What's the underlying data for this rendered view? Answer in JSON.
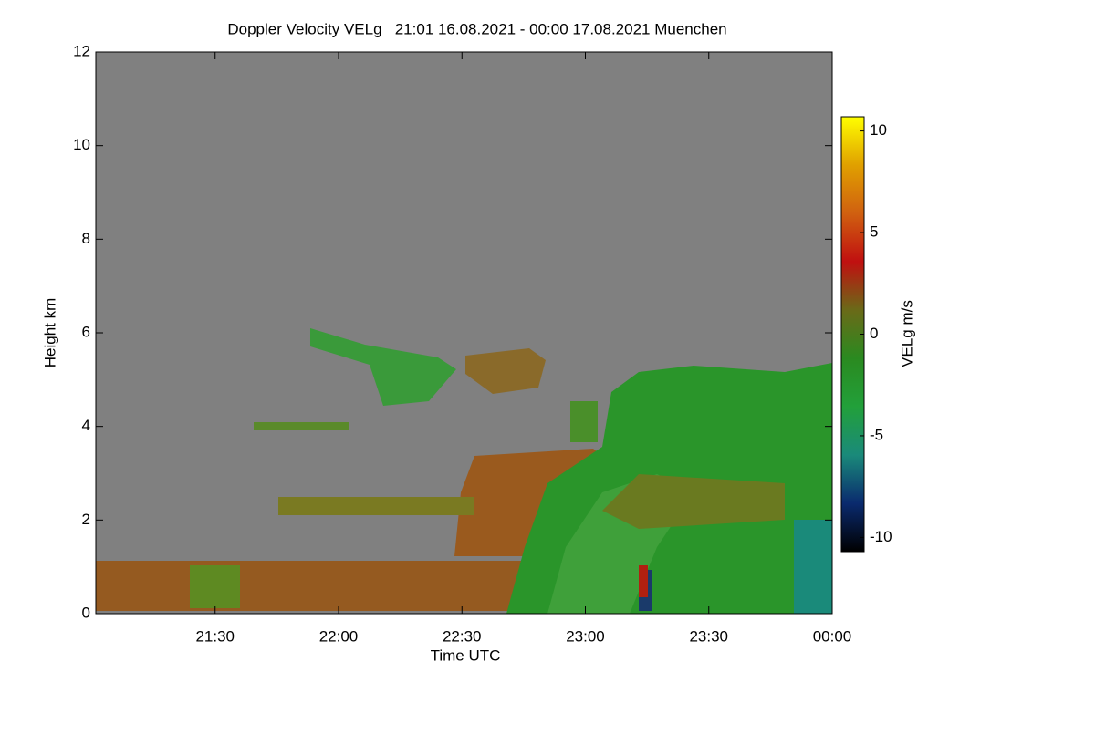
{
  "chart_data": {
    "type": "time-height",
    "title": "Doppler Velocity VELg   21:01 16.08.2021 - 00:00 17.08.2021 Muenchen",
    "x_label": "Time UTC",
    "y_label": "Height km",
    "colorbar_label": "VELg m/s",
    "xlim": [
      1,
      180
    ],
    "xticks": [
      {
        "value": 30,
        "label": "21:30"
      },
      {
        "value": 60,
        "label": "22:00"
      },
      {
        "value": 90,
        "label": "22:30"
      },
      {
        "value": 120,
        "label": "23:00"
      },
      {
        "value": 150,
        "label": "23:30"
      },
      {
        "value": 180,
        "label": "00:00"
      }
    ],
    "ylim": [
      0,
      12
    ],
    "yticks": [
      0,
      2,
      4,
      6,
      8,
      10,
      12
    ],
    "clim": [
      -10.7,
      10.7
    ],
    "cticks": [
      -10,
      -5,
      0,
      5,
      10
    ],
    "colormap": [
      "#000000",
      "#0a2a6e",
      "#1a8a7a",
      "#22a03a",
      "#2a8a20",
      "#6a6a18",
      "#c01010",
      "#d06010",
      "#e0a000",
      "#ffff00"
    ],
    "background_color": "#808080"
  }
}
